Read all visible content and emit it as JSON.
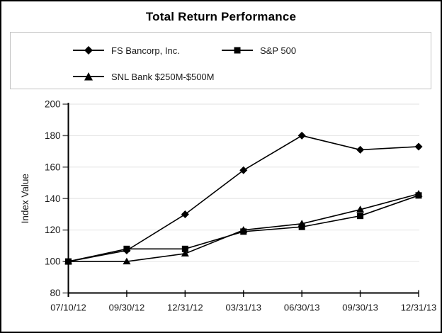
{
  "title": "Total Return Performance",
  "legend": {
    "items": [
      {
        "label": "FS Bancorp, Inc.",
        "marker": "diamond"
      },
      {
        "label": "S&P 500",
        "marker": "square"
      },
      {
        "label": "SNL Bank $250M-$500M",
        "marker": "triangle"
      }
    ]
  },
  "chart_data": {
    "type": "line",
    "title": "Total Return Performance",
    "xlabel": "",
    "ylabel": "Index Value",
    "categories": [
      "07/10/12",
      "09/30/12",
      "12/31/12",
      "03/31/13",
      "06/30/13",
      "09/30/13",
      "12/31/13"
    ],
    "series": [
      {
        "name": "FS Bancorp, Inc.",
        "marker": "diamond",
        "values": [
          100,
          107,
          130,
          158,
          180,
          171,
          173
        ]
      },
      {
        "name": "S&P 500",
        "marker": "square",
        "values": [
          100,
          108,
          108,
          119,
          122,
          129,
          142
        ]
      },
      {
        "name": "SNL Bank $250M-$500M",
        "marker": "triangle",
        "values": [
          100,
          100,
          105,
          120,
          124,
          133,
          143
        ]
      }
    ],
    "ylim": [
      80,
      200
    ],
    "yticks": [
      80,
      100,
      120,
      140,
      160,
      180,
      200
    ],
    "grid": true,
    "legend_position": "top"
  },
  "colors": {
    "line": "#000000",
    "marker": "#000000",
    "grid": "#e7e7e7",
    "tick": "#555555",
    "text": "#1a1a1a",
    "legend_border": "#c4c4c4",
    "frame_border": "#000000",
    "background": "#ffffff"
  }
}
